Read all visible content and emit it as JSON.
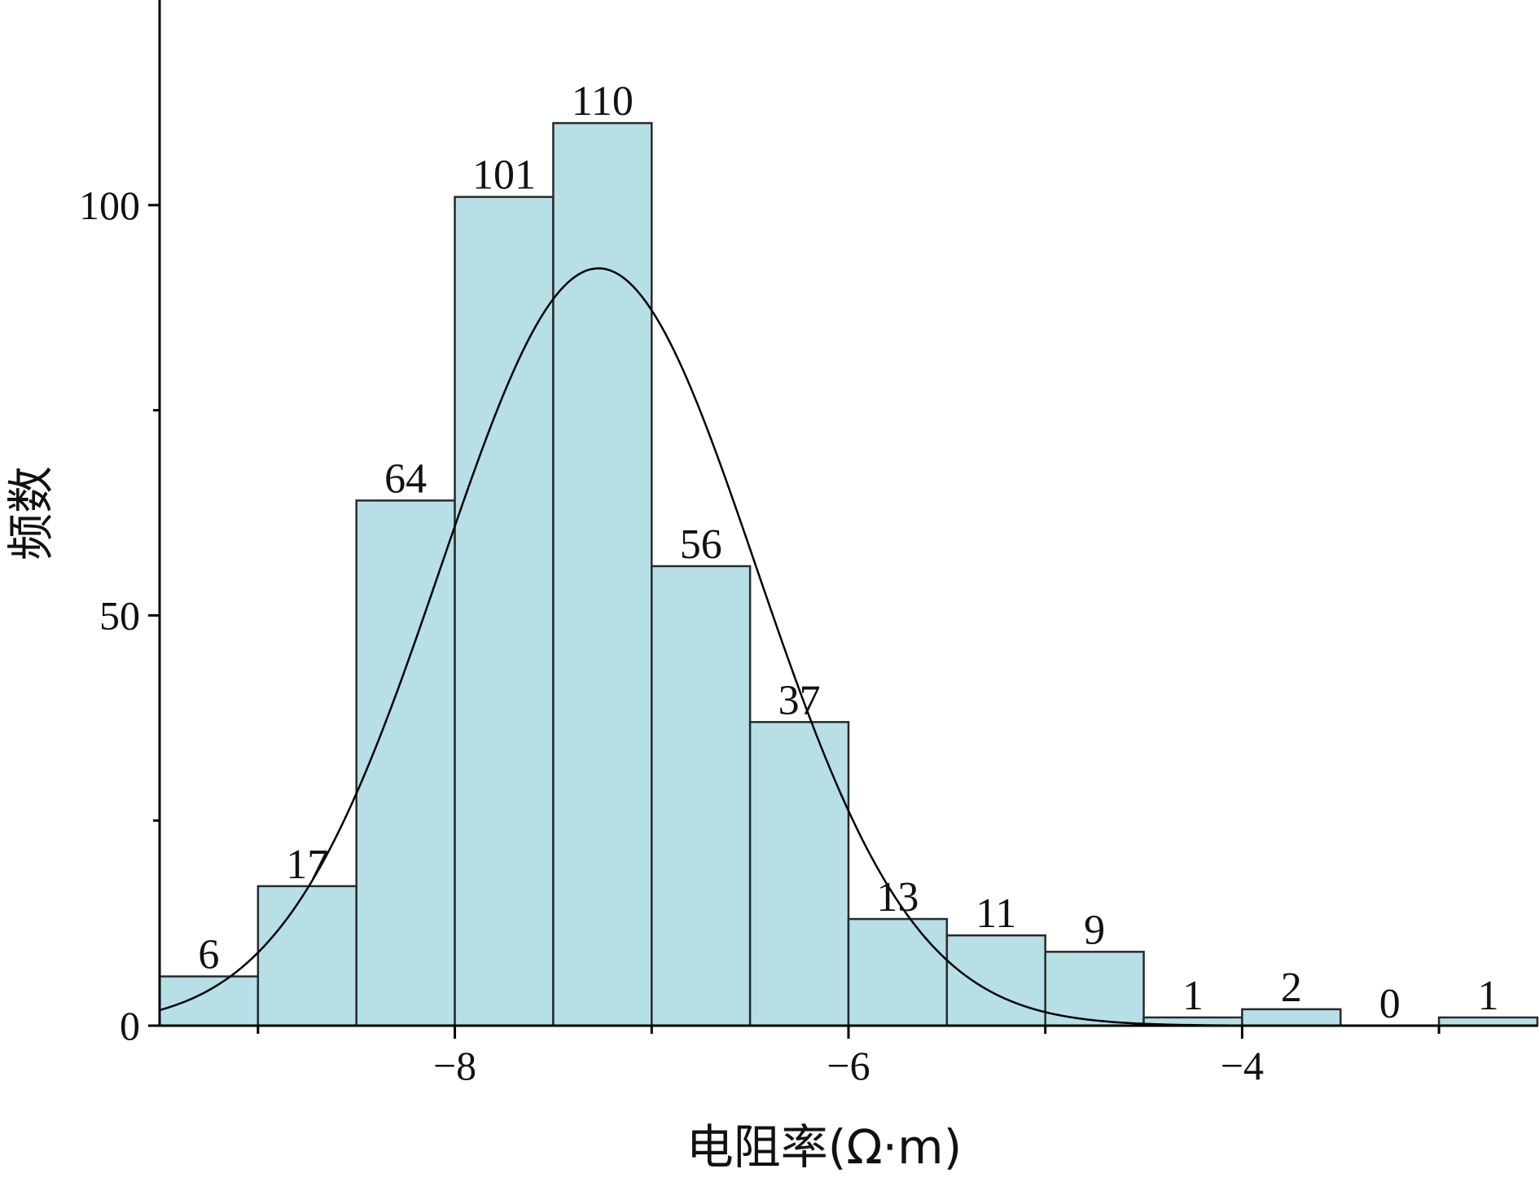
{
  "chart_data": {
    "type": "bar",
    "subtype": "histogram",
    "bins": [
      {
        "x0": -9.5,
        "x1": -9.0,
        "count": 6
      },
      {
        "x0": -9.0,
        "x1": -8.5,
        "count": 17
      },
      {
        "x0": -8.5,
        "x1": -8.0,
        "count": 64
      },
      {
        "x0": -8.0,
        "x1": -7.5,
        "count": 101
      },
      {
        "x0": -7.5,
        "x1": -7.0,
        "count": 110
      },
      {
        "x0": -7.0,
        "x1": -6.5,
        "count": 56
      },
      {
        "x0": -6.5,
        "x1": -6.0,
        "count": 37
      },
      {
        "x0": -6.0,
        "x1": -5.5,
        "count": 13
      },
      {
        "x0": -5.5,
        "x1": -5.0,
        "count": 11
      },
      {
        "x0": -5.0,
        "x1": -4.5,
        "count": 9
      },
      {
        "x0": -4.5,
        "x1": -4.0,
        "count": 1
      },
      {
        "x0": -4.0,
        "x1": -3.5,
        "count": 2
      },
      {
        "x0": -3.5,
        "x1": -3.0,
        "count": 0
      },
      {
        "x0": -3.0,
        "x1": -2.5,
        "count": 1
      }
    ],
    "bar_color": "#b6dfe6",
    "xlabel": "电阻率(Ω·m)",
    "ylabel": "频数",
    "xlim": [
      -9.5,
      -2.5
    ],
    "ylim": [
      0,
      125
    ],
    "xticks": [
      -8,
      -6,
      -4
    ],
    "xtick_labels": [
      "−8",
      "−6",
      "−4"
    ],
    "yticks": [
      0,
      50,
      100
    ],
    "ytick_labels": [
      "0",
      "50",
      "100"
    ],
    "fit_curve": {
      "type": "normal",
      "mean": -7.27,
      "std": 0.8,
      "peak": 92.3
    },
    "grid": false,
    "legend": "none"
  }
}
